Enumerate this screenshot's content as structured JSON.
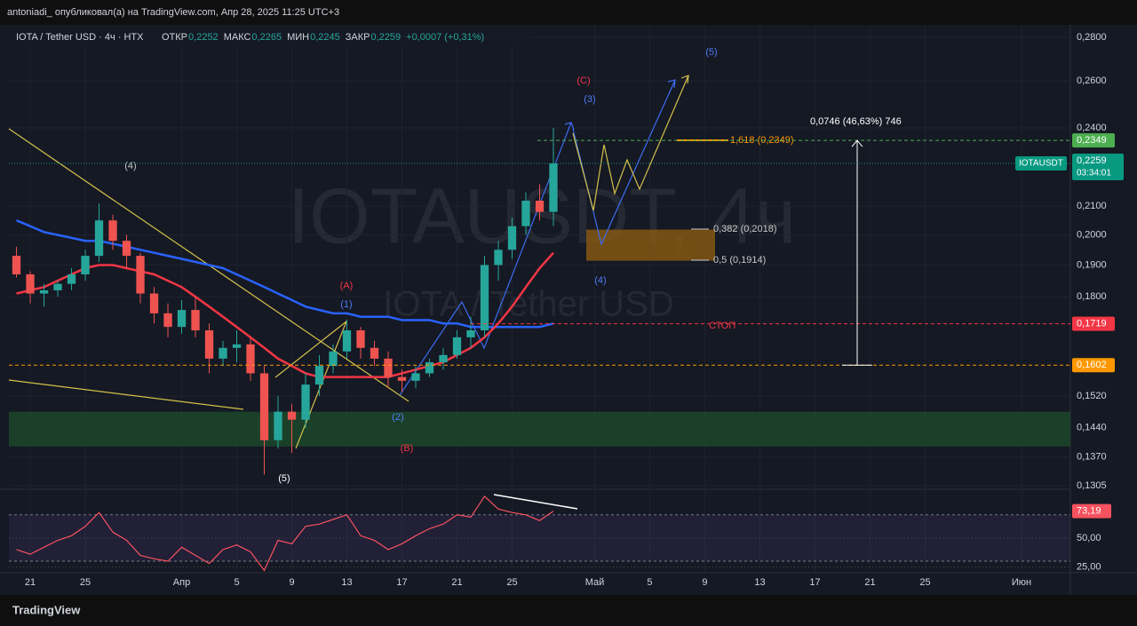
{
  "header": {
    "publisher": "antoniadi_ опубликовал(а) на TradingView.com, Апр 28, 2025 11:25 UTC+3",
    "symbol": "IOTA / Tether USD · 4ч · HTX",
    "ohlc": [
      "ОТКР",
      "0,2252",
      "МАКС",
      "0,2265",
      "МИН",
      "0,2245",
      "ЗАКР",
      "0,2259",
      "+0,0007 (+0,31%)"
    ]
  },
  "watermark": [
    "IOTAUSDT, 4ч",
    "IOTA / Tether USD"
  ],
  "footer": "TradingView",
  "chart_data": {
    "type": "candlestick",
    "log_scale": true,
    "xlim": [
      -1.55,
      75.55
    ],
    "ylim": [
      0.1295,
      0.286
    ],
    "xticks": [
      {
        "value": 0,
        "label": "21"
      },
      {
        "value": 4,
        "label": "25"
      },
      {
        "value": 11,
        "label": "Апр"
      },
      {
        "value": 15,
        "label": "5"
      },
      {
        "value": 19,
        "label": "9"
      },
      {
        "value": 23,
        "label": "13"
      },
      {
        "value": 27,
        "label": "17"
      },
      {
        "value": 31,
        "label": "21"
      },
      {
        "value": 35,
        "label": "25"
      },
      {
        "value": 41,
        "label": "Май"
      },
      {
        "value": 45,
        "label": "5"
      },
      {
        "value": 49,
        "label": "9"
      },
      {
        "value": 53,
        "label": "13"
      },
      {
        "value": 57,
        "label": "17"
      },
      {
        "value": 61,
        "label": "21"
      },
      {
        "value": 65,
        "label": "25"
      },
      {
        "value": 72,
        "label": "Июн"
      }
    ],
    "yticks": [
      {
        "value": 0.28,
        "label": "0,2800"
      },
      {
        "value": 0.26,
        "label": "0,2600"
      },
      {
        "value": 0.24,
        "label": "0,2400"
      },
      {
        "value": 0.21,
        "label": "0,2100"
      },
      {
        "value": 0.2,
        "label": "0,2000"
      },
      {
        "value": 0.19,
        "label": "0,1900"
      },
      {
        "value": 0.18,
        "label": "0,1800"
      },
      {
        "value": 0.152,
        "label": "0,1520"
      },
      {
        "value": 0.144,
        "label": "0,1440"
      },
      {
        "value": 0.137,
        "label": "0,1370"
      },
      {
        "value": 0.1305,
        "label": "0,1305"
      }
    ],
    "up_color": "#26a69a",
    "down_color": "#ef5350",
    "candles": {
      "x": [
        -1,
        0,
        1,
        2,
        3,
        4,
        5,
        6,
        7,
        8,
        9,
        10,
        11,
        12,
        13,
        14,
        15,
        16,
        17,
        18,
        19,
        20,
        21,
        22,
        23,
        24,
        25,
        26,
        27,
        28,
        29,
        30,
        31,
        32,
        33,
        34,
        35,
        36,
        37,
        38
      ],
      "open": [
        0.193,
        0.187,
        0.181,
        0.182,
        0.184,
        0.187,
        0.193,
        0.205,
        0.198,
        0.193,
        0.181,
        0.175,
        0.171,
        0.176,
        0.17,
        0.162,
        0.165,
        0.166,
        0.158,
        0.141,
        0.148,
        0.146,
        0.155,
        0.16,
        0.164,
        0.17,
        0.165,
        0.162,
        0.157,
        0.156,
        0.158,
        0.161,
        0.163,
        0.168,
        0.17,
        0.19,
        0.195,
        0.203,
        0.212,
        0.208
      ],
      "high": [
        0.196,
        0.188,
        0.184,
        0.185,
        0.189,
        0.195,
        0.211,
        0.207,
        0.2,
        0.194,
        0.183,
        0.178,
        0.179,
        0.18,
        0.172,
        0.167,
        0.17,
        0.168,
        0.16,
        0.152,
        0.15,
        0.158,
        0.163,
        0.166,
        0.173,
        0.171,
        0.167,
        0.164,
        0.159,
        0.16,
        0.162,
        0.165,
        0.17,
        0.174,
        0.193,
        0.198,
        0.206,
        0.215,
        0.218,
        0.24
      ],
      "low": [
        0.186,
        0.178,
        0.177,
        0.18,
        0.182,
        0.185,
        0.191,
        0.195,
        0.189,
        0.178,
        0.172,
        0.168,
        0.169,
        0.168,
        0.158,
        0.16,
        0.161,
        0.156,
        0.133,
        0.139,
        0.138,
        0.144,
        0.152,
        0.158,
        0.162,
        0.162,
        0.16,
        0.154,
        0.153,
        0.154,
        0.157,
        0.159,
        0.162,
        0.165,
        0.168,
        0.185,
        0.192,
        0.2,
        0.205,
        0.203
      ],
      "close": [
        0.187,
        0.181,
        0.182,
        0.184,
        0.187,
        0.193,
        0.205,
        0.198,
        0.193,
        0.181,
        0.175,
        0.171,
        0.176,
        0.17,
        0.162,
        0.165,
        0.166,
        0.158,
        0.141,
        0.148,
        0.146,
        0.155,
        0.16,
        0.164,
        0.17,
        0.165,
        0.162,
        0.157,
        0.156,
        0.158,
        0.161,
        0.163,
        0.168,
        0.17,
        0.19,
        0.195,
        0.203,
        0.212,
        0.208,
        0.2259
      ]
    },
    "series": [
      {
        "color": "#2962ff",
        "values": [
          0.205,
          0.203,
          0.201,
          0.2,
          0.199,
          0.198,
          0.198,
          0.197,
          0.196,
          0.195,
          0.194,
          0.193,
          0.192,
          0.191,
          0.19,
          0.189,
          0.187,
          0.185,
          0.183,
          0.181,
          0.179,
          0.177,
          0.176,
          0.175,
          0.175,
          0.174,
          0.174,
          0.174,
          0.173,
          0.173,
          0.173,
          0.172,
          0.172,
          0.171,
          0.171,
          0.171,
          0.171,
          0.171,
          0.171,
          0.172
        ]
      },
      {
        "color": "#f23645",
        "values": [
          0.181,
          0.182,
          0.183,
          0.185,
          0.187,
          0.189,
          0.19,
          0.19,
          0.189,
          0.188,
          0.187,
          0.185,
          0.183,
          0.18,
          0.177,
          0.174,
          0.171,
          0.168,
          0.165,
          0.162,
          0.16,
          0.158,
          0.157,
          0.157,
          0.157,
          0.157,
          0.157,
          0.157,
          0.158,
          0.159,
          0.16,
          0.161,
          0.163,
          0.165,
          0.168,
          0.172,
          0.177,
          0.183,
          0.189,
          0.194
        ]
      }
    ],
    "current": {
      "symbol": "IOTAUSDT",
      "value": 0.2259,
      "label": "0,2259",
      "countdown": "03:34:01",
      "color": "#089981"
    },
    "levels": [
      {
        "value": 0.2349,
        "label": "0,2349",
        "color": "#4caf50"
      },
      {
        "value": 0.1719,
        "label": "0,1719",
        "color": "#f23645"
      },
      {
        "value": 0.1602,
        "label": "0,1602",
        "color": "#ff9800"
      }
    ],
    "zones": [
      {
        "top": 0.148,
        "bottom": 0.1395,
        "color": "#1e4d2b"
      },
      {
        "top": 0.2018,
        "bottom": 0.1914,
        "color": "#8a5a10"
      }
    ],
    "annotations": {
      "waves": [
        "(4)",
        "(5)",
        "(A)",
        "(1)",
        "(2)",
        "(B)",
        "(C)",
        "(3)",
        "(4)",
        "(5)"
      ],
      "fib": [
        "1,618 (0,2349)",
        "0,382 (0,2018)",
        "0,5 (0,1914)"
      ],
      "stop": "СТОП",
      "measure": "0,0746 (46,63%) 746"
    },
    "rsi": {
      "color": "#f7525f",
      "ylim": [
        20,
        89
      ],
      "yticks": [
        {
          "value": 50,
          "label": "50,00"
        },
        {
          "value": 25,
          "label": "25,00"
        }
      ],
      "band": [
        30,
        70
      ],
      "values": [
        40,
        36,
        42,
        48,
        52,
        60,
        72,
        55,
        48,
        35,
        32,
        30,
        42,
        35,
        28,
        40,
        44,
        38,
        22,
        48,
        45,
        60,
        62,
        66,
        70,
        52,
        48,
        40,
        45,
        52,
        58,
        62,
        70,
        68,
        86,
        75,
        72,
        70,
        65,
        73.19
      ],
      "value_labels": [
        null,
        null,
        null,
        null,
        null,
        null,
        null,
        null,
        null,
        null,
        null,
        null,
        null,
        null,
        null,
        null,
        null,
        null,
        null,
        null,
        null,
        null,
        null,
        null,
        null,
        null,
        null,
        null,
        null,
        null,
        null,
        null,
        null,
        null,
        null,
        null,
        null,
        null,
        null,
        "73,19"
      ]
    }
  }
}
